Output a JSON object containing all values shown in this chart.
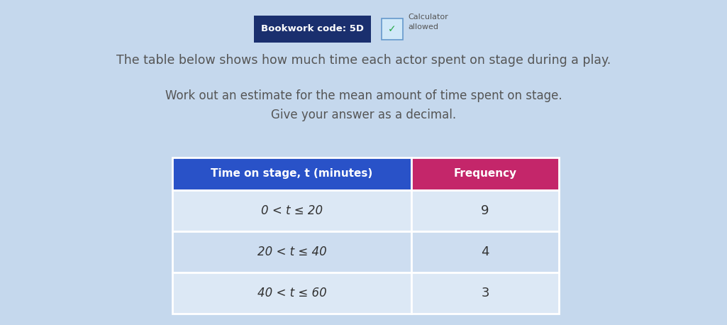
{
  "bookwork_label": "Bookwork code: 5D",
  "calculator_text": "Calculator\nallowed",
  "line1": "The table below shows how much time each actor spent on stage during a play.",
  "line2": "Work out an estimate for the mean amount of time spent on stage.",
  "line3": "Give your answer as a decimal.",
  "col1_header": "Time on stage, t (minutes)",
  "col2_header": "Frequency",
  "rows": [
    [
      "0 < t ≤ 20",
      "9"
    ],
    [
      "20 < t ≤ 40",
      "4"
    ],
    [
      "40 < t ≤ 60",
      "3"
    ]
  ],
  "bg_color": "#c5d8ed",
  "table_col1_header_bg": "#2952c8",
  "table_col2_header_bg": "#c4266a",
  "table_row_bg1": "#dce8f5",
  "table_row_bg2": "#cdddf0",
  "bookwork_bg": "#1a2f6e",
  "text_color_dark": "#555555",
  "text_color_white": "#ffffff",
  "fig_width": 10.25,
  "fig_height": 4.58,
  "dpi": 100
}
